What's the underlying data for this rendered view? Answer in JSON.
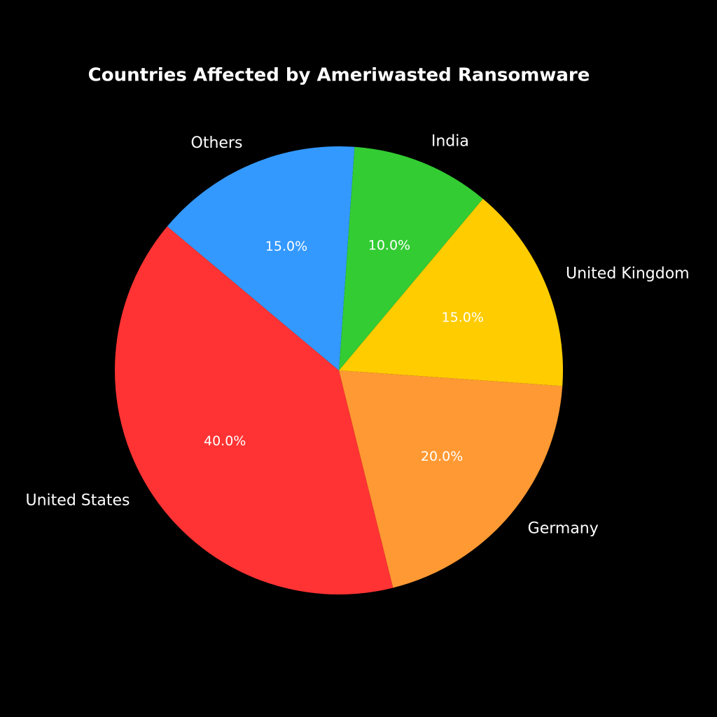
{
  "chart_data": {
    "type": "pie",
    "title": "Countries Affected by Ameriwasted Ransomware",
    "categories": [
      "United States",
      "Germany",
      "United Kingdom",
      "India",
      "Others"
    ],
    "values": [
      40,
      20,
      15,
      10,
      15
    ],
    "value_labels": [
      "40.0%",
      "20.0%",
      "15.0%",
      "10.0%",
      "15.0%"
    ],
    "colors": [
      "#ff3333",
      "#ff9933",
      "#ffcc00",
      "#33cc33",
      "#3399ff"
    ],
    "start_angle": 140
  }
}
